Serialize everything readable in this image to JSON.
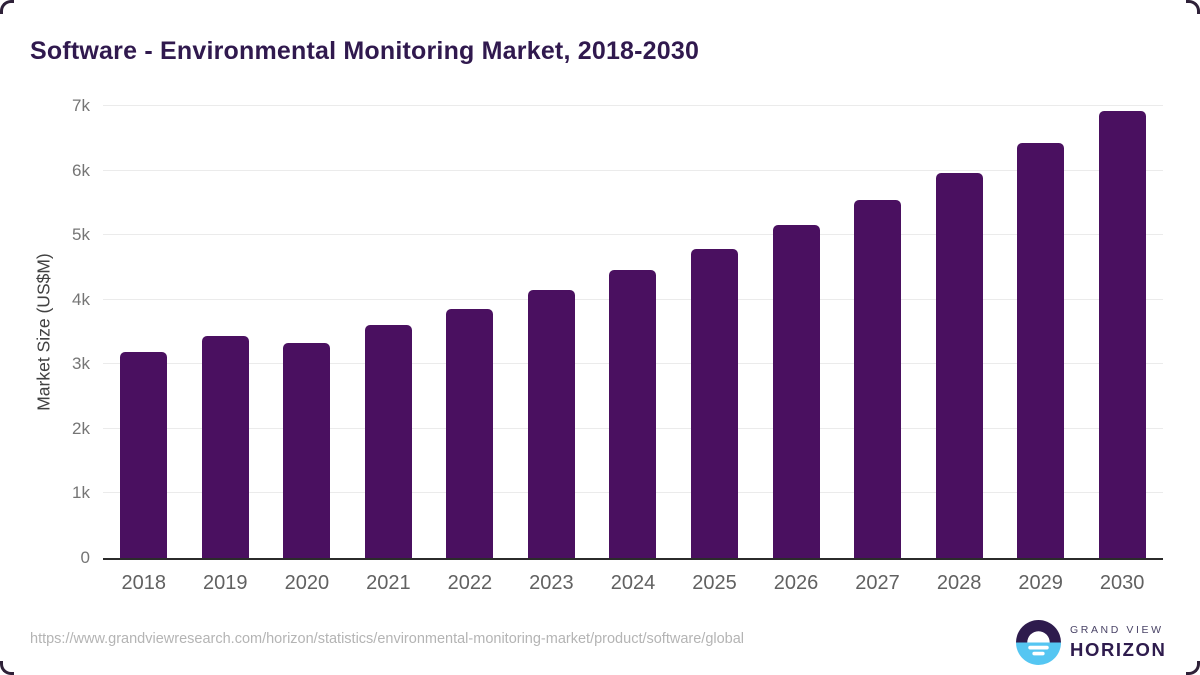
{
  "chart_data": {
    "type": "bar",
    "title": "Software - Environmental Monitoring Market, 2018-2030",
    "ylabel": "Market Size (US$M)",
    "xlabel": "",
    "categories": [
      "2018",
      "2019",
      "2020",
      "2021",
      "2022",
      "2023",
      "2024",
      "2025",
      "2026",
      "2027",
      "2028",
      "2029",
      "2030"
    ],
    "values": [
      3190,
      3440,
      3330,
      3610,
      3860,
      4150,
      4460,
      4780,
      5150,
      5540,
      5960,
      6420,
      6920
    ],
    "ylim": [
      0,
      7000
    ],
    "yticks": [
      {
        "value": 0,
        "label": "0"
      },
      {
        "value": 1000,
        "label": "1k"
      },
      {
        "value": 2000,
        "label": "2k"
      },
      {
        "value": 3000,
        "label": "3k"
      },
      {
        "value": 4000,
        "label": "4k"
      },
      {
        "value": 5000,
        "label": "5k"
      },
      {
        "value": 6000,
        "label": "6k"
      },
      {
        "value": 7000,
        "label": "7k"
      }
    ],
    "grid": "horizontal",
    "legend": "none",
    "bar_color": "#4a1060"
  },
  "footer": {
    "source_url": "https://www.grandviewresearch.com/horizon/statistics/environmental-monitoring-market/product/software/global",
    "brand": {
      "line1": "GRAND VIEW",
      "line2": "HORIZON"
    }
  },
  "colors": {
    "bar": "#4a1060",
    "title": "#30194e",
    "gridline": "#ebebeb",
    "axis_line": "#2b2b2b",
    "tick_label": "#757575",
    "url_text": "#b4b4b4",
    "logo_dark": "#2e1b4d",
    "logo_blue": "#55c6f2"
  }
}
